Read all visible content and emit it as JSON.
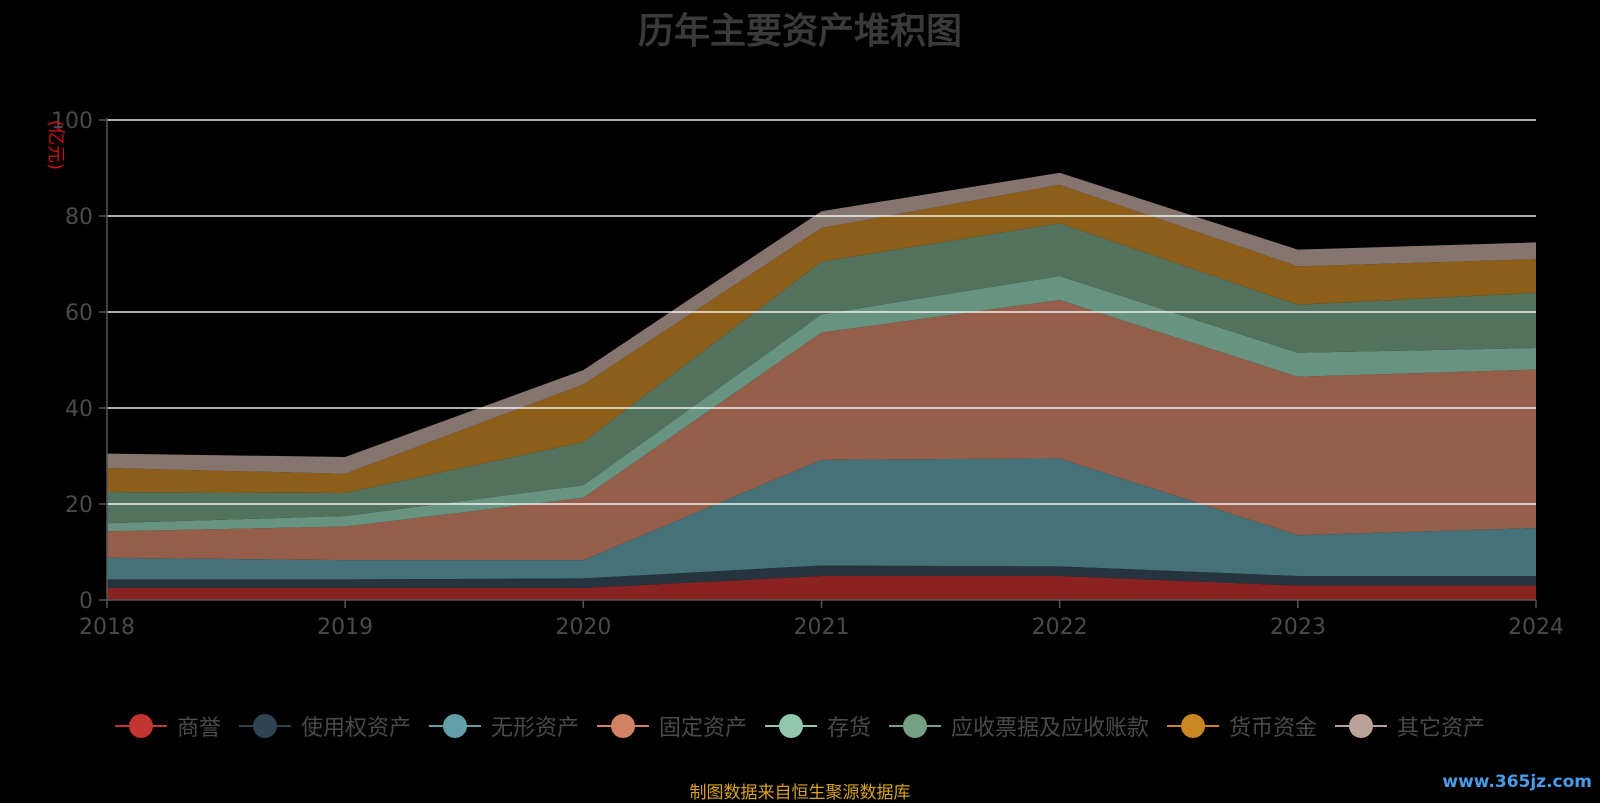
{
  "chart_data": {
    "type": "area",
    "title": "历年主要资产堆积图",
    "ylabel": "(亿元)",
    "xlabel": "",
    "categories": [
      "2018",
      "2019",
      "2020",
      "2021",
      "2022",
      "2023",
      "2024"
    ],
    "ylim": [
      0,
      100
    ],
    "yticks": [
      0,
      20,
      40,
      60,
      80,
      100
    ],
    "stacked": true,
    "grid": true,
    "legend_position": "bottom",
    "series": [
      {
        "name": "商誉",
        "color": "#c23531",
        "fill": "#8b2222",
        "values": [
          2.5,
          2.5,
          2.5,
          5,
          5,
          3,
          3
        ]
      },
      {
        "name": "使用权资产",
        "color": "#2f4554",
        "fill": "#263440",
        "values": [
          1.8,
          1.8,
          2.0,
          2.2,
          2.0,
          2.0,
          2.0
        ]
      },
      {
        "name": "无形资产",
        "color": "#61a0a8",
        "fill": "#457279",
        "values": [
          4.5,
          4.0,
          3.8,
          22,
          22.5,
          8.5,
          10
        ]
      },
      {
        "name": "固定资产",
        "color": "#d48265",
        "fill": "#945e4a",
        "values": [
          5.5,
          7.0,
          13,
          26.5,
          33,
          33,
          33
        ]
      },
      {
        "name": "存货",
        "color": "#91c7ae",
        "fill": "#689380",
        "values": [
          1.7,
          2.2,
          2.6,
          3.8,
          5,
          5,
          4.5
        ]
      },
      {
        "name": "应收票据及应收账款",
        "color": "#749f83",
        "fill": "#52725e",
        "values": [
          6.5,
          4.8,
          9,
          11,
          11,
          10,
          11.5
        ]
      },
      {
        "name": "货币资金",
        "color": "#ca8622",
        "fill": "#8c5e1a",
        "values": [
          5,
          4,
          12,
          7,
          8,
          8,
          7
        ]
      },
      {
        "name": "其它资产",
        "color": "#bda29a",
        "fill": "#86756f",
        "values": [
          3,
          3.5,
          3,
          3.5,
          2.5,
          3.5,
          3.5
        ]
      }
    ]
  },
  "footer": {
    "source": "制图数据来自恒生聚源数据库",
    "watermark": "www.365jz.com"
  }
}
